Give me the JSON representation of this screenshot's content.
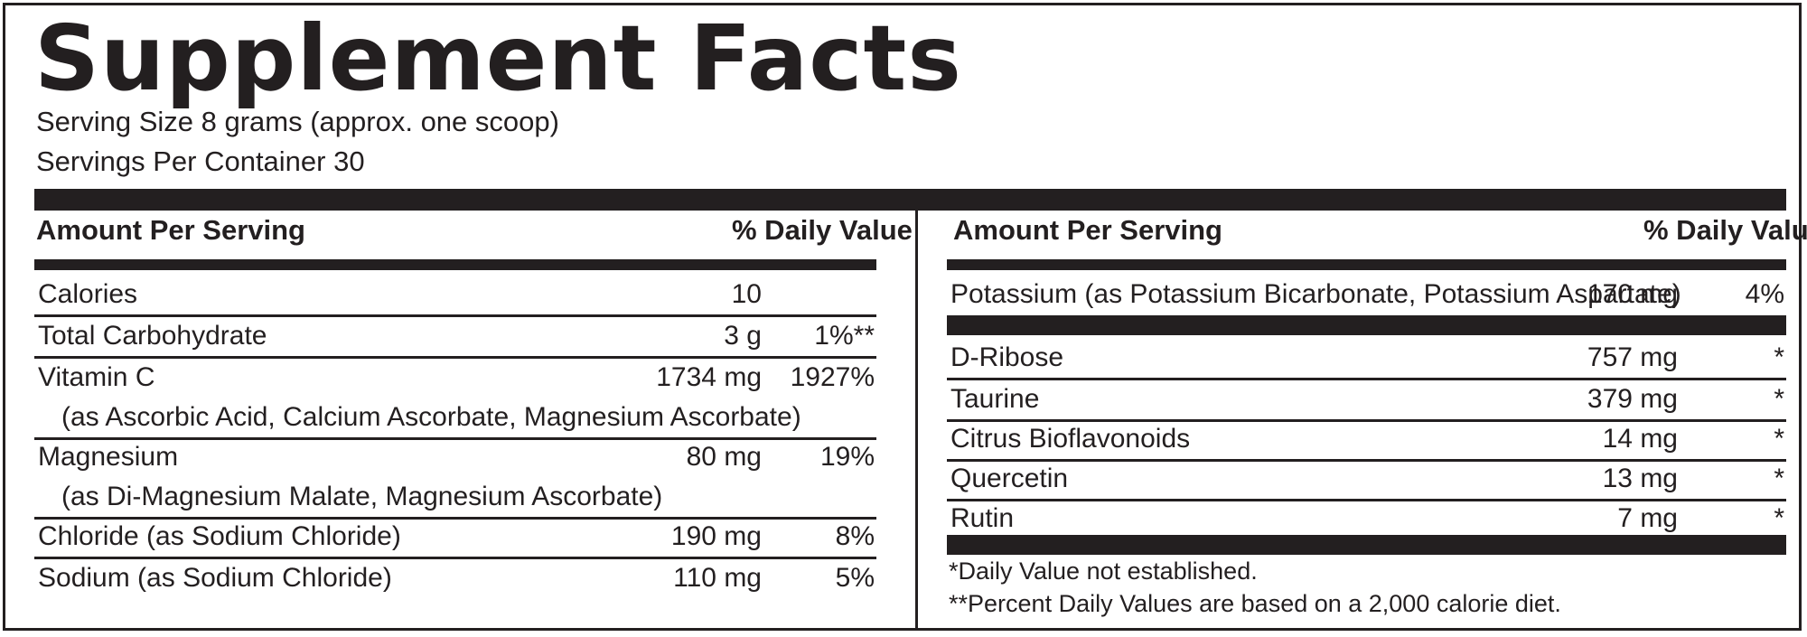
{
  "title": "Supplement Facts",
  "serving_size": "Serving Size 8 grams (approx. one scoop)",
  "servings_per_container": "Servings Per Container 30",
  "left_header": {
    "amount": "Amount Per Serving",
    "daily_value": "% Daily Value"
  },
  "right_header": {
    "amount": "Amount Per Serving",
    "daily_value": "% Daily Value"
  },
  "left_rows": [
    {
      "name": "Calories",
      "sub": "",
      "amount": "10",
      "dv": ""
    },
    {
      "name": "Total Carbohydrate",
      "sub": "",
      "amount": "3 g",
      "dv": "1%**"
    },
    {
      "name": "Vitamin C",
      "sub": "(as Ascorbic Acid, Calcium Ascorbate, Magnesium Ascorbate)",
      "amount": "1734 mg",
      "dv": "1927%"
    },
    {
      "name": "Magnesium",
      "sub": "(as Di-Magnesium Malate, Magnesium Ascorbate)",
      "amount": "80 mg",
      "dv": "19%"
    },
    {
      "name": "Chloride (as Sodium Chloride)",
      "sub": "",
      "amount": "190 mg",
      "dv": "8%"
    },
    {
      "name": "Sodium (as Sodium Chloride)",
      "sub": "",
      "amount": "110 mg",
      "dv": "5%"
    }
  ],
  "right_rows": [
    {
      "name": "Potassium (as Potassium Bicarbonate, Potassium Aspartate)",
      "amount": "170 mg",
      "dv": "4%"
    },
    {
      "name": "D-Ribose",
      "amount": "757 mg",
      "dv": "*"
    },
    {
      "name": "Taurine",
      "amount": "379 mg",
      "dv": "*"
    },
    {
      "name": "Citrus Bioflavonoids",
      "amount": "14 mg",
      "dv": "*"
    },
    {
      "name": "Quercetin",
      "amount": "13 mg",
      "dv": "*"
    },
    {
      "name": "Rutin",
      "amount": "7 mg",
      "dv": "*"
    }
  ],
  "footnotes": [
    "*Daily Value not established.",
    "**Percent Daily Values are based on a 2,000 calorie diet."
  ]
}
